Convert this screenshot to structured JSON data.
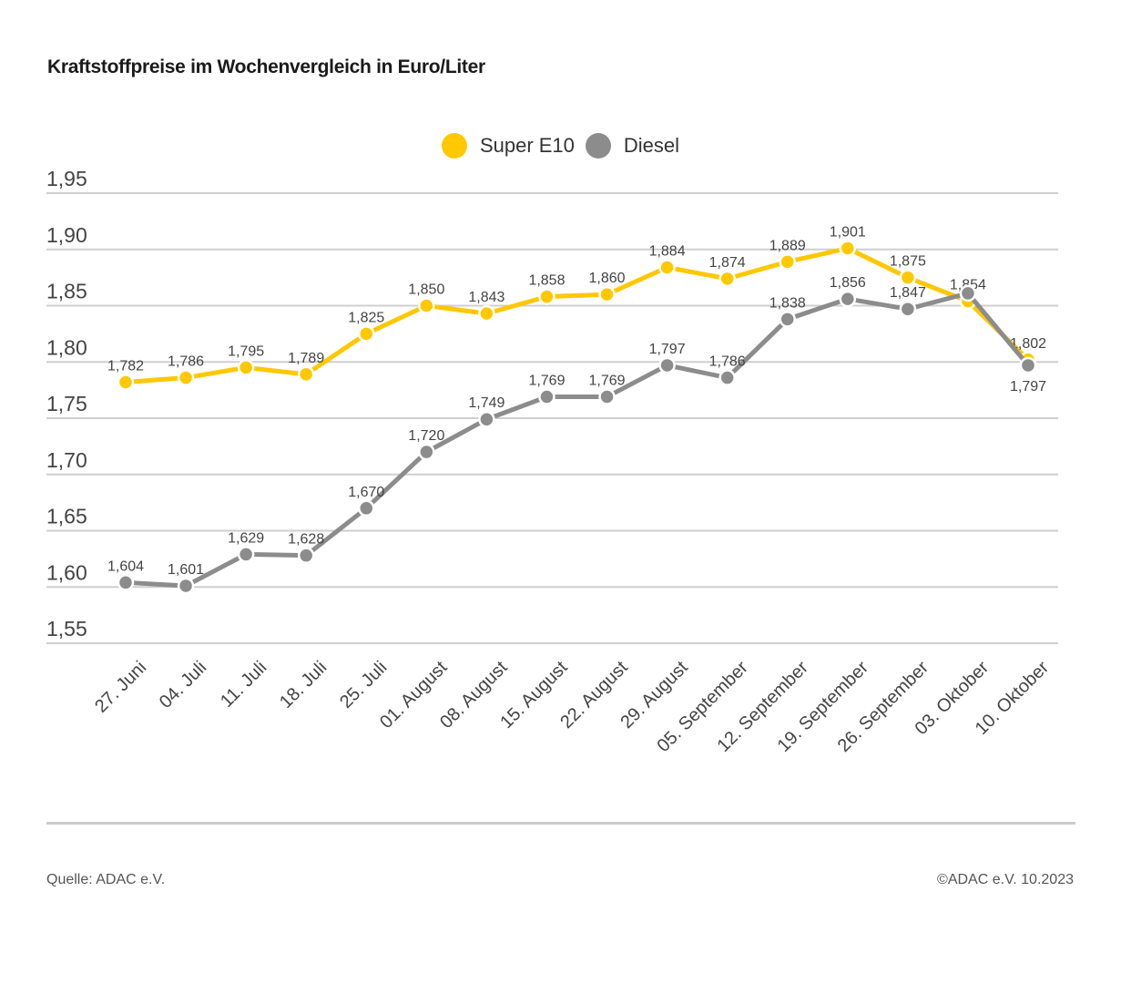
{
  "header": {
    "title": "Kraftstoffpreise im Wochenvergleich in Euro/Liter"
  },
  "footer": {
    "source": "Quelle: ADAC e.V.",
    "copyright": "©ADAC e.V. 10.2023"
  },
  "chart_data": {
    "type": "line",
    "title": "Kraftstoffpreise im Wochenvergleich in Euro/Liter",
    "xlabel": "",
    "ylabel": "",
    "ylim": [
      1.55,
      1.95
    ],
    "yticks": [
      1.95,
      1.9,
      1.85,
      1.8,
      1.75,
      1.7,
      1.65,
      1.6,
      1.55
    ],
    "ytick_labels": [
      "1,95",
      "1,90",
      "1,85",
      "1,80",
      "1,75",
      "1,70",
      "1,65",
      "1,60",
      "1,55"
    ],
    "grid": true,
    "legend_position": "top-center",
    "categories": [
      "27. Juni",
      "04. Juli",
      "11. Juli",
      "18. Juli",
      "25. Juli",
      "01. August",
      "08. August",
      "15. August",
      "22. August",
      "29. August",
      "05. September",
      "12. September",
      "19. September",
      "26. September",
      "03. Oktober",
      "10. Oktober"
    ],
    "series": [
      {
        "name": "Super E10",
        "color": "#FFC800",
        "values": [
          1.782,
          1.786,
          1.795,
          1.789,
          1.825,
          1.85,
          1.843,
          1.858,
          1.86,
          1.884,
          1.874,
          1.889,
          1.901,
          1.875,
          1.854,
          1.802
        ],
        "labels": [
          "1,782",
          "1,786",
          "1,795",
          "1,789",
          "1,825",
          "1,850",
          "1,843",
          "1,858",
          "1,860",
          "1,884",
          "1,874",
          "1,889",
          "1,901",
          "1,875",
          "1,854",
          "1,802"
        ],
        "label_offsets": [
          "above",
          "above",
          "above",
          "above",
          "above",
          "above",
          "above",
          "above",
          "above",
          "above",
          "above",
          "above",
          "above",
          "above",
          "above",
          "above"
        ]
      },
      {
        "name": "Diesel",
        "color": "#8C8C8C",
        "values": [
          1.604,
          1.601,
          1.629,
          1.628,
          1.67,
          1.72,
          1.749,
          1.769,
          1.769,
          1.797,
          1.786,
          1.838,
          1.856,
          1.847,
          1.861,
          1.797
        ],
        "labels": [
          "1,604",
          "1,601",
          "1,629",
          "1,628",
          "1,670",
          "1,720",
          "1,749",
          "1,769",
          "1,769",
          "1,797",
          "1,786",
          "1,838",
          "1,856",
          "1,847",
          "",
          "1,797"
        ],
        "label_offsets": [
          "above",
          "above",
          "above",
          "above",
          "above",
          "above",
          "above",
          "above",
          "above",
          "above",
          "above",
          "above",
          "above",
          "above",
          "above",
          "below"
        ]
      }
    ]
  }
}
